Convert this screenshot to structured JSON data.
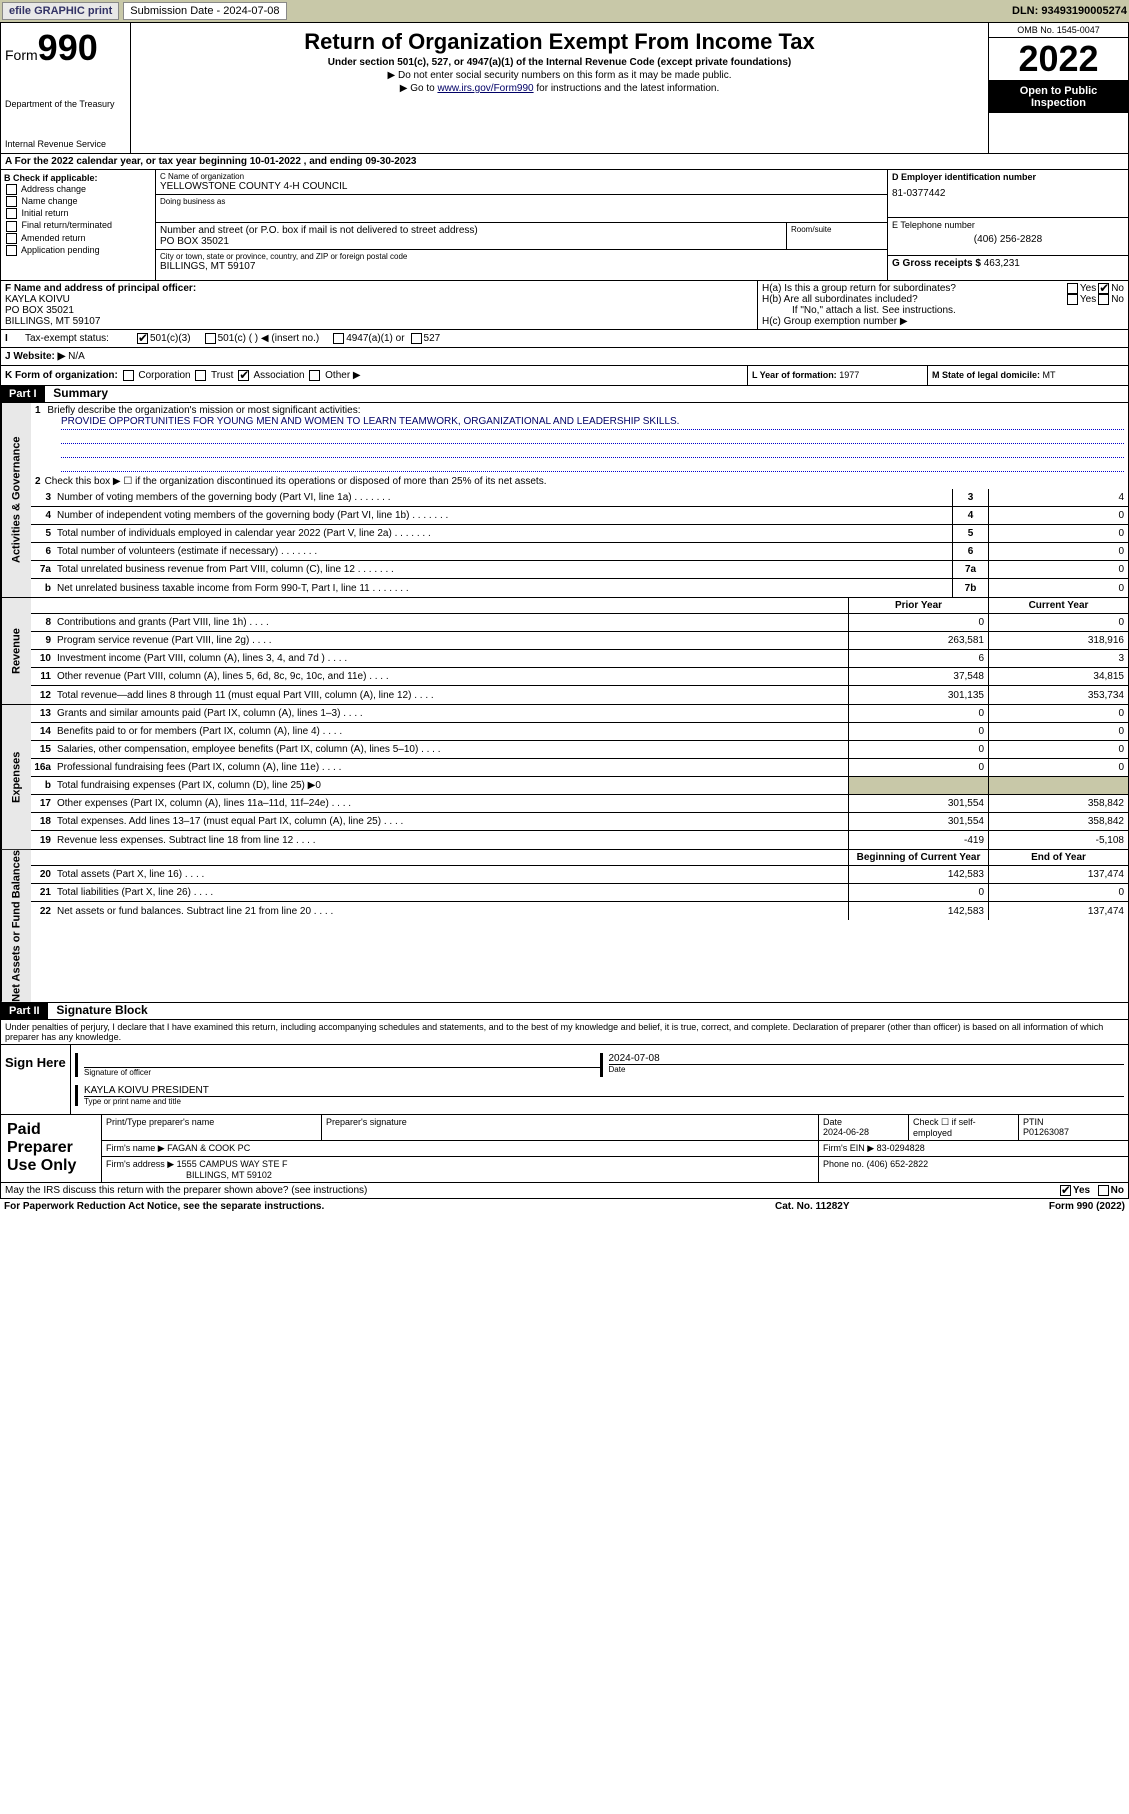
{
  "topbar": {
    "efile": "efile GRAPHIC print",
    "submission_label": "Submission Date - 2024-07-08",
    "dln": "DLN: 93493190005274"
  },
  "header": {
    "form_word": "Form",
    "form_num": "990",
    "title": "Return of Organization Exempt From Income Tax",
    "subtitle": "Under section 501(c), 527, or 4947(a)(1) of the Internal Revenue Code (except private foundations)",
    "note1": "▶ Do not enter social security numbers on this form as it may be made public.",
    "note2_pre": "▶ Go to ",
    "note2_link": "www.irs.gov/Form990",
    "note2_post": " for instructions and the latest information.",
    "dept": "Department of the Treasury",
    "irs": "Internal Revenue Service",
    "omb": "OMB No. 1545-0047",
    "year": "2022",
    "open": "Open to Public Inspection"
  },
  "row_a": "A For the 2022 calendar year, or tax year beginning 10-01-2022    , and ending 09-30-2023",
  "section_b": {
    "title": "B Check if applicable:",
    "opts": [
      "Address change",
      "Name change",
      "Initial return",
      "Final return/terminated",
      "Amended return",
      "Application pending"
    ]
  },
  "section_c": {
    "name_lbl": "C Name of organization",
    "name": "YELLOWSTONE COUNTY 4-H COUNCIL",
    "dba_lbl": "Doing business as",
    "street_lbl": "Number and street (or P.O. box if mail is not delivered to street address)",
    "suite_lbl": "Room/suite",
    "street": "PO BOX 35021",
    "city_lbl": "City or town, state or province, country, and ZIP or foreign postal code",
    "city": "BILLINGS, MT  59107"
  },
  "section_d": {
    "lbl": "D Employer identification number",
    "val": "81-0377442"
  },
  "section_e": {
    "lbl": "E Telephone number",
    "val": "(406) 256-2828"
  },
  "section_g": {
    "lbl": "G Gross receipts $",
    "val": "463,231"
  },
  "section_f": {
    "lbl": "F Name and address of principal officer:",
    "name": "KAYLA KOIVU",
    "addr1": "PO BOX 35021",
    "addr2": "BILLINGS, MT  59107"
  },
  "section_h": {
    "ha": "H(a)  Is this a group return for subordinates?",
    "hb": "H(b)  Are all subordinates included?",
    "hb_note": "If \"No,\" attach a list. See instructions.",
    "hc": "H(c)  Group exemption number ▶",
    "yes": "Yes",
    "no": "No"
  },
  "row_i": {
    "lbl": "Tax-exempt status:",
    "opt1": "501(c)(3)",
    "opt2": "501(c) (  ) ◀ (insert no.)",
    "opt3": "4947(a)(1) or",
    "opt4": "527"
  },
  "row_j": {
    "lbl": "J   Website: ▶",
    "val": "N/A"
  },
  "row_k": {
    "lbl": "K Form of organization:",
    "corp": "Corporation",
    "trust": "Trust",
    "assoc": "Association",
    "other": "Other ▶"
  },
  "row_l": {
    "lbl": "L Year of formation:",
    "val": "1977"
  },
  "row_m": {
    "lbl": "M State of legal domicile:",
    "val": "MT"
  },
  "part1": {
    "header": "Part I",
    "title": "Summary",
    "tab_activities": "Activities & Governance",
    "tab_revenue": "Revenue",
    "tab_expenses": "Expenses",
    "tab_netassets": "Net Assets or Fund Balances",
    "line1_lbl": "Briefly describe the organization's mission or most significant activities:",
    "line1_val": "PROVIDE OPPORTUNITIES FOR YOUNG MEN AND WOMEN TO LEARN TEAMWORK, ORGANIZATIONAL AND LEADERSHIP SKILLS.",
    "line2": "Check this box ▶ ☐  if the organization discontinued its operations or disposed of more than 25% of its net assets.",
    "lines_gov": [
      {
        "n": "3",
        "t": "Number of voting members of the governing body (Part VI, line 1a)",
        "box": "3",
        "v": "4"
      },
      {
        "n": "4",
        "t": "Number of independent voting members of the governing body (Part VI, line 1b)",
        "box": "4",
        "v": "0"
      },
      {
        "n": "5",
        "t": "Total number of individuals employed in calendar year 2022 (Part V, line 2a)",
        "box": "5",
        "v": "0"
      },
      {
        "n": "6",
        "t": "Total number of volunteers (estimate if necessary)",
        "box": "6",
        "v": "0"
      },
      {
        "n": "7a",
        "t": "Total unrelated business revenue from Part VIII, column (C), line 12",
        "box": "7a",
        "v": "0"
      },
      {
        "n": "b",
        "t": "Net unrelated business taxable income from Form 990-T, Part I, line 11",
        "box": "7b",
        "v": "0"
      }
    ],
    "prior_year": "Prior Year",
    "current_year": "Current Year",
    "lines_rev": [
      {
        "n": "8",
        "t": "Contributions and grants (Part VIII, line 1h)",
        "p": "0",
        "c": "0"
      },
      {
        "n": "9",
        "t": "Program service revenue (Part VIII, line 2g)",
        "p": "263,581",
        "c": "318,916"
      },
      {
        "n": "10",
        "t": "Investment income (Part VIII, column (A), lines 3, 4, and 7d )",
        "p": "6",
        "c": "3"
      },
      {
        "n": "11",
        "t": "Other revenue (Part VIII, column (A), lines 5, 6d, 8c, 9c, 10c, and 11e)",
        "p": "37,548",
        "c": "34,815"
      },
      {
        "n": "12",
        "t": "Total revenue—add lines 8 through 11 (must equal Part VIII, column (A), line 12)",
        "p": "301,135",
        "c": "353,734"
      }
    ],
    "lines_exp": [
      {
        "n": "13",
        "t": "Grants and similar amounts paid (Part IX, column (A), lines 1–3)",
        "p": "0",
        "c": "0"
      },
      {
        "n": "14",
        "t": "Benefits paid to or for members (Part IX, column (A), line 4)",
        "p": "0",
        "c": "0"
      },
      {
        "n": "15",
        "t": "Salaries, other compensation, employee benefits (Part IX, column (A), lines 5–10)",
        "p": "0",
        "c": "0"
      },
      {
        "n": "16a",
        "t": "Professional fundraising fees (Part IX, column (A), line 11e)",
        "p": "0",
        "c": "0"
      }
    ],
    "line16b": "Total fundraising expenses (Part IX, column (D), line 25) ▶0",
    "lines_exp2": [
      {
        "n": "17",
        "t": "Other expenses (Part IX, column (A), lines 11a–11d, 11f–24e)",
        "p": "301,554",
        "c": "358,842"
      },
      {
        "n": "18",
        "t": "Total expenses. Add lines 13–17 (must equal Part IX, column (A), line 25)",
        "p": "301,554",
        "c": "358,842"
      },
      {
        "n": "19",
        "t": "Revenue less expenses. Subtract line 18 from line 12",
        "p": "-419",
        "c": "-5,108"
      }
    ],
    "begin_year": "Beginning of Current Year",
    "end_year": "End of Year",
    "lines_net": [
      {
        "n": "20",
        "t": "Total assets (Part X, line 16)",
        "p": "142,583",
        "c": "137,474"
      },
      {
        "n": "21",
        "t": "Total liabilities (Part X, line 26)",
        "p": "0",
        "c": "0"
      },
      {
        "n": "22",
        "t": "Net assets or fund balances. Subtract line 21 from line 20",
        "p": "142,583",
        "c": "137,474"
      }
    ]
  },
  "part2": {
    "header": "Part II",
    "title": "Signature Block",
    "decl": "Under penalties of perjury, I declare that I have examined this return, including accompanying schedules and statements, and to the best of my knowledge and belief, it is true, correct, and complete. Declaration of preparer (other than officer) is based on all information of which preparer has any knowledge.",
    "sign_here": "Sign Here",
    "sig_officer": "Signature of officer",
    "sig_date": "Date",
    "sig_date_val": "2024-07-08",
    "officer_name": "KAYLA KOIVU PRESIDENT",
    "type_name": "Type or print name and title",
    "paid_prep": "Paid Preparer Use Only",
    "prep_name_lbl": "Print/Type preparer's name",
    "prep_sig_lbl": "Preparer's signature",
    "prep_date_lbl": "Date",
    "prep_date": "2024-06-28",
    "self_emp": "Check ☐ if self-employed",
    "ptin_lbl": "PTIN",
    "ptin": "P01263087",
    "firm_name_lbl": "Firm's name    ▶",
    "firm_name": "FAGAN & COOK PC",
    "firm_ein_lbl": "Firm's EIN ▶",
    "firm_ein": "83-0294828",
    "firm_addr_lbl": "Firm's address ▶",
    "firm_addr1": "1555 CAMPUS WAY STE F",
    "firm_addr2": "BILLINGS, MT  59102",
    "firm_phone_lbl": "Phone no.",
    "firm_phone": "(406) 652-2822"
  },
  "footer": {
    "discuss": "May the IRS discuss this return with the preparer shown above? (see instructions)",
    "yes": "Yes",
    "no": "No",
    "paperwork": "For Paperwork Reduction Act Notice, see the separate instructions.",
    "cat": "Cat. No. 11282Y",
    "form": "Form 990 (2022)"
  }
}
